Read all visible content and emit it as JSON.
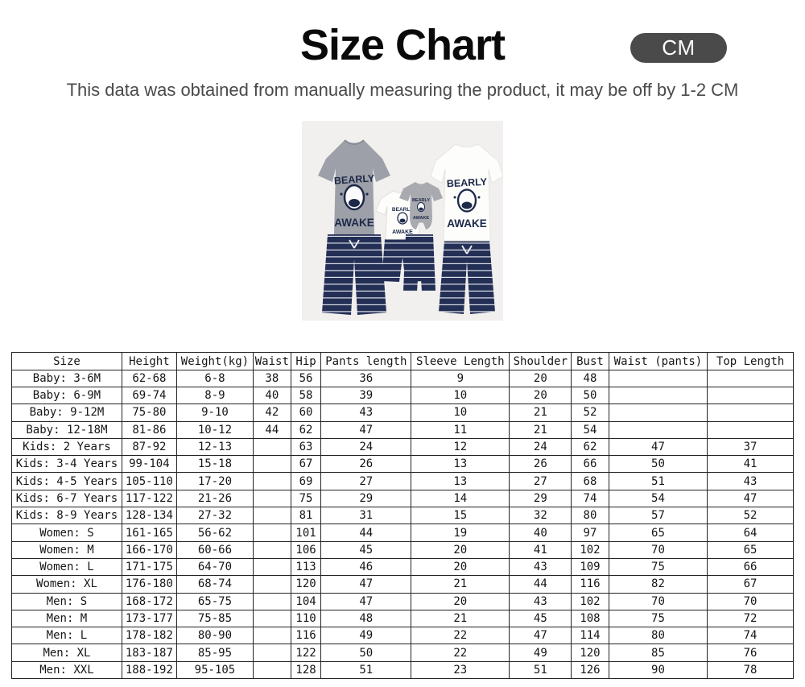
{
  "header": {
    "title": "Size Chart",
    "unit_badge": "CM",
    "subtitle": "This data was obtained from manually measuring the product, it may be off by 1-2 CM"
  },
  "product": {
    "description": "family matching bear print tops and navy striped shorts",
    "graphic_line1": "BEARLY",
    "graphic_line2": "AWAKE"
  },
  "colors": {
    "badge_background": "#4a4a4b",
    "navy": "#242f56",
    "stripe": "#dde1e8",
    "gray_shirt": "#9da0a8",
    "photo_background": "#f1f0ee"
  },
  "size_table": {
    "columns": [
      "Size",
      "Height",
      "Weight(kg)",
      "Waist",
      "Hip",
      "Pants length",
      "Sleeve Length",
      "Shoulder",
      "Bust",
      "Waist (pants)",
      "Top Length"
    ],
    "rows": [
      [
        "Baby: 3-6M",
        "62-68",
        "6-8",
        "38",
        "56",
        "36",
        "9",
        "20",
        "48",
        "",
        ""
      ],
      [
        "Baby: 6-9M",
        "69-74",
        "8-9",
        "40",
        "58",
        "39",
        "10",
        "20",
        "50",
        "",
        ""
      ],
      [
        "Baby: 9-12M",
        "75-80",
        "9-10",
        "42",
        "60",
        "43",
        "10",
        "21",
        "52",
        "",
        ""
      ],
      [
        "Baby: 12-18M",
        "81-86",
        "10-12",
        "44",
        "62",
        "47",
        "11",
        "21",
        "54",
        "",
        ""
      ],
      [
        "Kids: 2 Years",
        "87-92",
        "12-13",
        "",
        "63",
        "24",
        "12",
        "24",
        "62",
        "47",
        "37"
      ],
      [
        "Kids: 3-4 Years",
        "99-104",
        "15-18",
        "",
        "67",
        "26",
        "13",
        "26",
        "66",
        "50",
        "41"
      ],
      [
        "Kids: 4-5 Years",
        "105-110",
        "17-20",
        "",
        "69",
        "27",
        "13",
        "27",
        "68",
        "51",
        "43"
      ],
      [
        "Kids: 6-7 Years",
        "117-122",
        "21-26",
        "",
        "75",
        "29",
        "14",
        "29",
        "74",
        "54",
        "47"
      ],
      [
        "Kids: 8-9 Years",
        "128-134",
        "27-32",
        "",
        "81",
        "31",
        "15",
        "32",
        "80",
        "57",
        "52"
      ],
      [
        "Women: S",
        "161-165",
        "56-62",
        "",
        "101",
        "44",
        "19",
        "40",
        "97",
        "65",
        "64"
      ],
      [
        "Women: M",
        "166-170",
        "60-66",
        "",
        "106",
        "45",
        "20",
        "41",
        "102",
        "70",
        "65"
      ],
      [
        "Women: L",
        "171-175",
        "64-70",
        "",
        "113",
        "46",
        "20",
        "43",
        "109",
        "75",
        "66"
      ],
      [
        "Women: XL",
        "176-180",
        "68-74",
        "",
        "120",
        "47",
        "21",
        "44",
        "116",
        "82",
        "67"
      ],
      [
        "Men: S",
        "168-172",
        "65-75",
        "",
        "104",
        "47",
        "20",
        "43",
        "102",
        "70",
        "70"
      ],
      [
        "Men: M",
        "173-177",
        "75-85",
        "",
        "110",
        "48",
        "21",
        "45",
        "108",
        "75",
        "72"
      ],
      [
        "Men: L",
        "178-182",
        "80-90",
        "",
        "116",
        "49",
        "22",
        "47",
        "114",
        "80",
        "74"
      ],
      [
        "Men: XL",
        "183-187",
        "85-95",
        "",
        "122",
        "50",
        "22",
        "49",
        "120",
        "85",
        "76"
      ],
      [
        "Men: XXL",
        "188-192",
        "95-105",
        "",
        "128",
        "51",
        "23",
        "51",
        "126",
        "90",
        "78"
      ]
    ]
  }
}
